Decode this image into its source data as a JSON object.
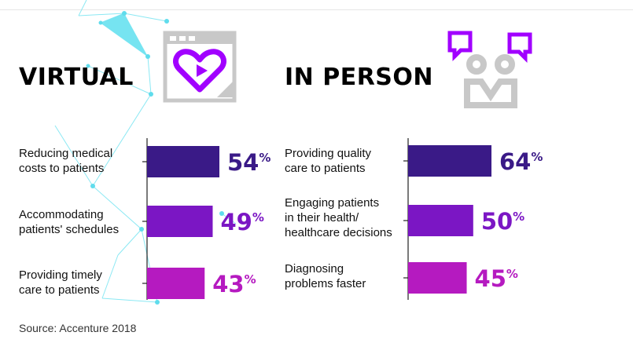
{
  "panels": [
    {
      "heading": "VIRTUAL",
      "labels": [
        "Reducing medical\ncosts to patients",
        "Accommodating\npatients' schedules",
        "Providing timely\ncare to patients"
      ]
    },
    {
      "heading": "IN PERSON",
      "labels": [
        "Providing quality\ncare to patients",
        "Engaging patients\nin their health/\nhealthcare decisions",
        "Diagnosing\nproblems faster"
      ]
    }
  ],
  "chart_data": [
    {
      "type": "bar",
      "orientation": "horizontal",
      "title": "VIRTUAL",
      "categories": [
        "Reducing medical costs to patients",
        "Accommodating patients' schedules",
        "Providing timely care to patients"
      ],
      "values": [
        54,
        49,
        43
      ],
      "value_labels": [
        "54%",
        "49%",
        "43%"
      ],
      "colors": [
        "#3a1a87",
        "#7b16c4",
        "#b51ac0"
      ]
    },
    {
      "type": "bar",
      "orientation": "horizontal",
      "title": "IN PERSON",
      "categories": [
        "Providing quality care to patients",
        "Engaging patients in their health/ healthcare decisions",
        "Diagnosing problems faster"
      ],
      "values": [
        64,
        50,
        45
      ],
      "value_labels": [
        "64%",
        "50%",
        "45%"
      ],
      "colors": [
        "#3a1a87",
        "#7b16c4",
        "#b51ac0"
      ]
    }
  ],
  "source": "Source: Accenture 2018",
  "colors": {
    "accent_purple": "#a100ff",
    "network_cyan": "#6fe3f0",
    "icon_gray": "#c8c8c8"
  },
  "icons": [
    "heart-browser-icon",
    "people-chat-icon"
  ]
}
